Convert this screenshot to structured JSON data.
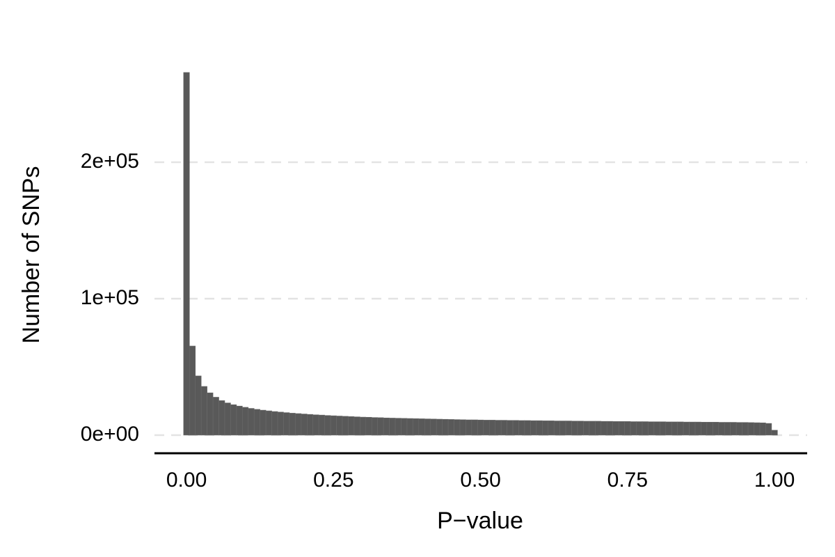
{
  "chart_data": {
    "type": "histogram",
    "x_label": "P−value",
    "y_label": "Number of SNPs",
    "color": "#595959",
    "bins": [
      -0.005,
      0.005,
      0.015,
      0.025,
      0.035,
      0.045,
      0.055,
      0.065,
      0.075,
      0.085,
      0.095,
      0.105,
      0.115,
      0.125,
      0.135,
      0.145,
      0.155,
      0.165,
      0.175,
      0.185,
      0.195,
      0.205,
      0.215,
      0.225,
      0.235,
      0.245,
      0.255,
      0.265,
      0.275,
      0.285,
      0.295,
      0.305,
      0.315,
      0.325,
      0.335,
      0.345,
      0.355,
      0.365,
      0.375,
      0.385,
      0.395,
      0.405,
      0.415,
      0.425,
      0.435,
      0.445,
      0.455,
      0.465,
      0.475,
      0.485,
      0.495,
      0.505,
      0.515,
      0.525,
      0.535,
      0.545,
      0.555,
      0.565,
      0.575,
      0.585,
      0.595,
      0.605,
      0.615,
      0.625,
      0.635,
      0.645,
      0.655,
      0.665,
      0.675,
      0.685,
      0.695,
      0.705,
      0.715,
      0.725,
      0.735,
      0.745,
      0.755,
      0.765,
      0.775,
      0.785,
      0.795,
      0.805,
      0.815,
      0.825,
      0.835,
      0.845,
      0.855,
      0.865,
      0.875,
      0.885,
      0.895,
      0.905,
      0.915,
      0.925,
      0.935,
      0.945,
      0.955,
      0.965,
      0.975,
      0.985,
      0.995,
      1.005
    ],
    "values": [
      265800,
      65300,
      43400,
      35700,
      31000,
      27800,
      25300,
      23600,
      22300,
      21300,
      20400,
      19600,
      18900,
      18300,
      17800,
      17300,
      16900,
      16500,
      16100,
      15800,
      15500,
      15200,
      14900,
      14700,
      14400,
      14200,
      14000,
      13800,
      13600,
      13400,
      13200,
      13100,
      12900,
      12800,
      12600,
      12500,
      12400,
      12300,
      12200,
      12100,
      12000,
      11900,
      11800,
      11700,
      11600,
      11500,
      11400,
      11300,
      11200,
      11200,
      11100,
      11000,
      11000,
      10900,
      10900,
      10800,
      10800,
      10700,
      10700,
      10600,
      10600,
      10500,
      10500,
      10400,
      10400,
      10400,
      10300,
      10300,
      10200,
      10200,
      10200,
      10100,
      10100,
      10000,
      10000,
      10000,
      9900,
      9900,
      9900,
      9800,
      9800,
      9800,
      9700,
      9700,
      9700,
      9600,
      9600,
      9600,
      9500,
      9500,
      9500,
      9400,
      9400,
      9400,
      9300,
      9300,
      9200,
      9100,
      9000,
      8600,
      3600
    ],
    "xlim": [
      -0.0545,
      1.0555
    ],
    "ylim": [
      -13290,
      279090
    ],
    "xticks": [
      {
        "value": 0,
        "label": "0.00"
      },
      {
        "value": 0.25,
        "label": "0.25"
      },
      {
        "value": 0.5,
        "label": "0.50"
      },
      {
        "value": 0.75,
        "label": "0.75"
      },
      {
        "value": 1,
        "label": "1.00"
      }
    ],
    "yticks": [
      {
        "value": 0,
        "label": "0e+00"
      },
      {
        "value": 100000,
        "label": "1e+05"
      },
      {
        "value": 200000,
        "label": "2e+05"
      }
    ],
    "grid": true
  }
}
